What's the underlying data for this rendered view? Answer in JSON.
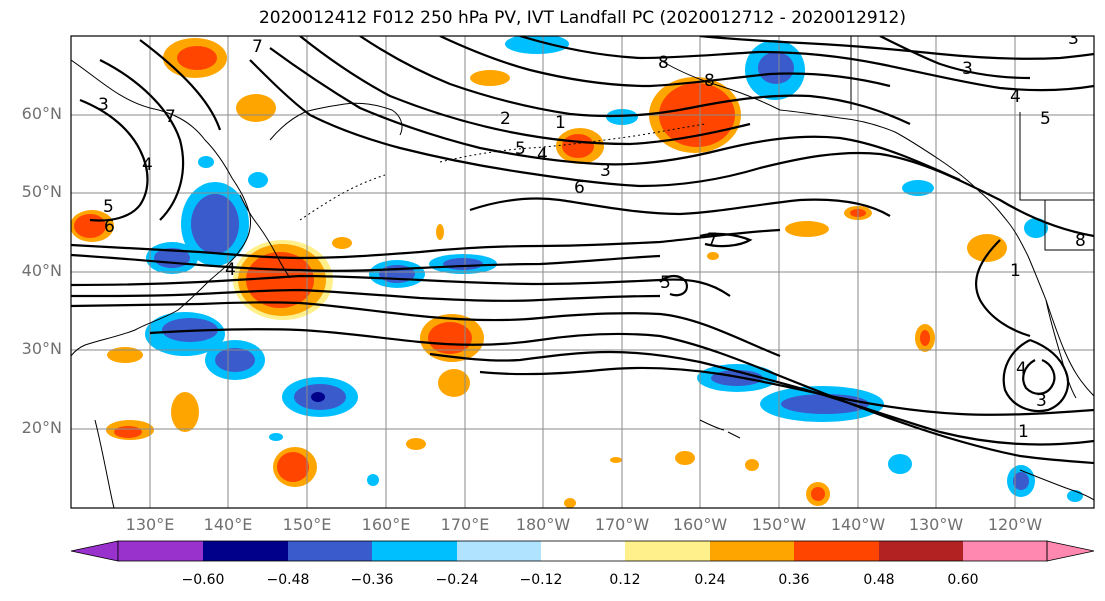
{
  "title": "2020012412 F012 250 hPa PV, IVT Landfall PC (2020012712 - 2020012912)",
  "lat_labels": [
    "60°N",
    "50°N",
    "40°N",
    "30°N",
    "20°N"
  ],
  "lon_labels": [
    "130°E",
    "140°E",
    "150°E",
    "160°E",
    "170°E",
    "180°W",
    "170°W",
    "160°W",
    "150°W",
    "140°W",
    "130°W",
    "120°W"
  ],
  "colorbar": {
    "ticks": [
      "−0.60",
      "−0.48",
      "−0.36",
      "−0.24",
      "−0.12",
      "0.12",
      "0.24",
      "0.36",
      "0.48",
      "0.60"
    ],
    "colors": [
      "#9932cc",
      "#00008b",
      "#3a5bcc",
      "#00bfff",
      "#afe3ff",
      "#ffffff",
      "#fff08c",
      "#ffa500",
      "#ff4500",
      "#b22222",
      "#ff88b0"
    ]
  },
  "contour_labels": [
    "7",
    "3",
    "7",
    "4",
    "5",
    "6",
    "1",
    "2",
    "5",
    "4",
    "3",
    "6",
    "8",
    "8",
    "7",
    "5",
    "1",
    "3",
    "4",
    "5",
    "4",
    "3",
    "1",
    "8",
    "4",
    "3"
  ]
}
